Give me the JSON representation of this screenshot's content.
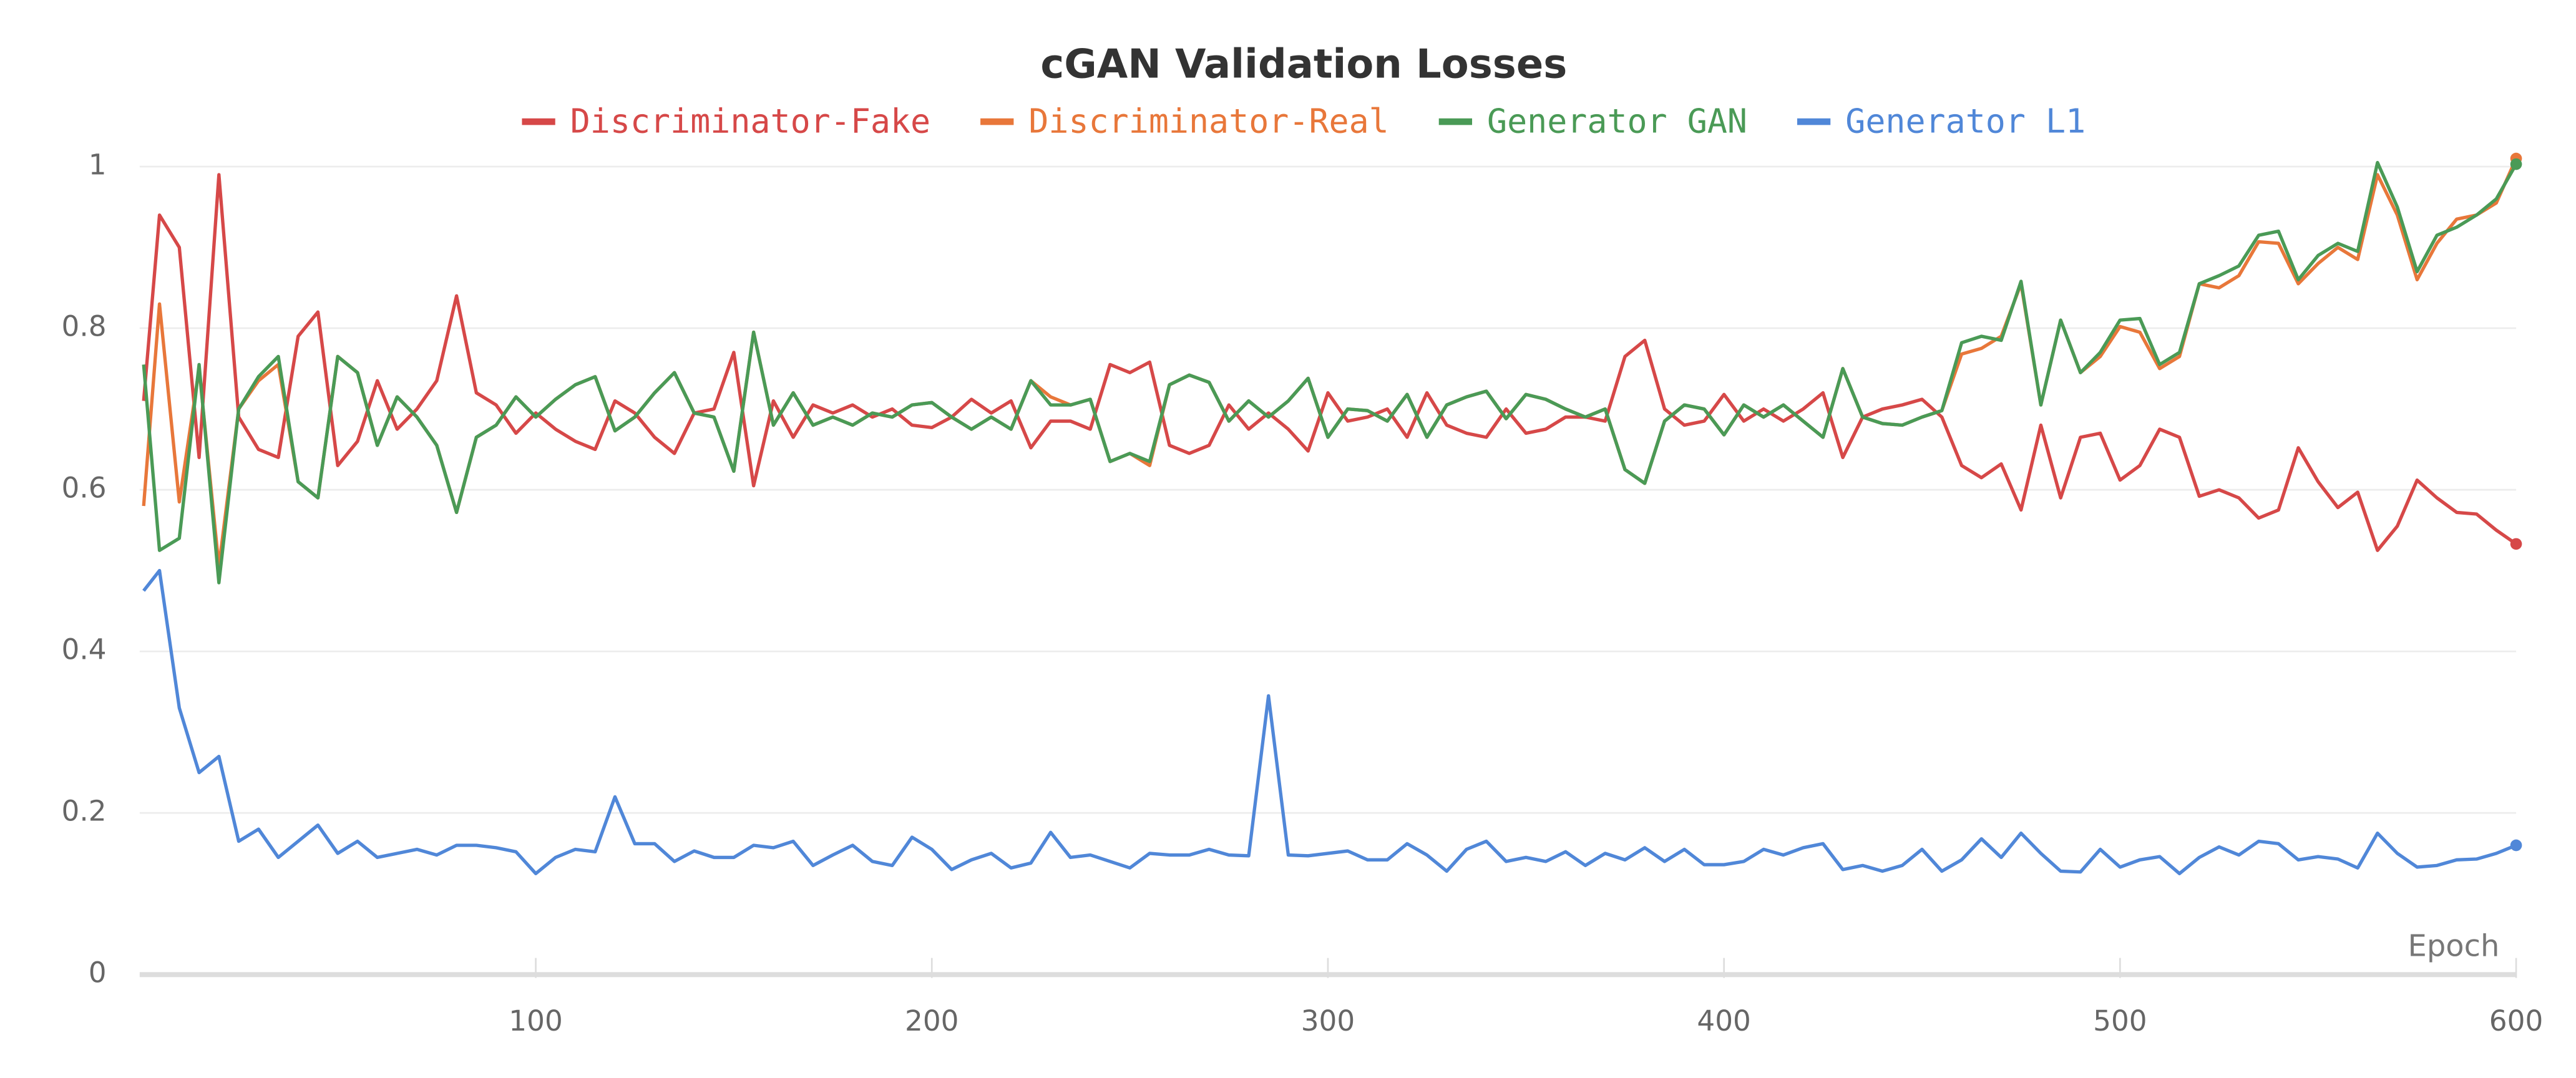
{
  "chart_data": {
    "type": "line",
    "title": "cGAN Validation Losses",
    "xlabel": "Epoch",
    "x": [
      1,
      5,
      10,
      15,
      20,
      25,
      30,
      35,
      40,
      45,
      50,
      55,
      60,
      65,
      70,
      75,
      80,
      85,
      90,
      95,
      100,
      105,
      110,
      115,
      120,
      125,
      130,
      135,
      140,
      145,
      150,
      155,
      160,
      165,
      170,
      175,
      180,
      185,
      190,
      195,
      200,
      205,
      210,
      215,
      220,
      225,
      230,
      235,
      240,
      245,
      250,
      255,
      260,
      265,
      270,
      275,
      280,
      285,
      290,
      295,
      300,
      305,
      310,
      315,
      320,
      325,
      330,
      335,
      340,
      345,
      350,
      355,
      360,
      365,
      370,
      375,
      380,
      385,
      390,
      395,
      400,
      405,
      410,
      415,
      420,
      425,
      430,
      435,
      440,
      445,
      450,
      455,
      460,
      465,
      470,
      475,
      480,
      485,
      490,
      495,
      500,
      505,
      510,
      515,
      520,
      525,
      530,
      535,
      540,
      545,
      550,
      555,
      560,
      565,
      570,
      575,
      580,
      585,
      590,
      595,
      600
    ],
    "series": [
      {
        "name": "Discriminator-Fake",
        "color": "#d64848",
        "values": [
          0.71,
          0.94,
          0.9,
          0.64,
          0.99,
          0.69,
          0.65,
          0.64,
          0.79,
          0.82,
          0.63,
          0.66,
          0.735,
          0.675,
          0.7,
          0.735,
          0.84,
          0.72,
          0.705,
          0.67,
          0.695,
          0.675,
          0.66,
          0.65,
          0.71,
          0.695,
          0.665,
          0.645,
          0.695,
          0.7,
          0.77,
          0.605,
          0.71,
          0.665,
          0.705,
          0.695,
          0.705,
          0.69,
          0.7,
          0.68,
          0.677,
          0.69,
          0.712,
          0.695,
          0.71,
          0.652,
          0.685,
          0.685,
          0.675,
          0.755,
          0.745,
          0.758,
          0.655,
          0.645,
          0.655,
          0.705,
          0.675,
          0.695,
          0.675,
          0.648,
          0.72,
          0.685,
          0.69,
          0.7,
          0.665,
          0.72,
          0.68,
          0.67,
          0.665,
          0.7,
          0.67,
          0.675,
          0.69,
          0.69,
          0.685,
          0.765,
          0.785,
          0.7,
          0.68,
          0.685,
          0.718,
          0.685,
          0.7,
          0.685,
          0.7,
          0.72,
          0.64,
          0.69,
          0.7,
          0.705,
          0.712,
          0.69,
          0.63,
          0.615,
          0.632,
          0.575,
          0.68,
          0.59,
          0.665,
          0.67,
          0.612,
          0.63,
          0.675,
          0.665,
          0.592,
          0.6,
          0.59,
          0.565,
          0.575,
          0.652,
          0.61,
          0.578,
          0.597,
          0.525,
          0.555,
          0.612,
          0.59,
          0.572,
          0.57,
          0.55,
          0.533
        ]
      },
      {
        "name": "Discriminator-Real",
        "color": "#e8773a",
        "values": [
          0.58,
          0.83,
          0.585,
          0.75,
          0.505,
          0.7,
          0.735,
          0.755,
          0.61,
          0.59,
          0.765,
          0.745,
          0.655,
          0.715,
          0.69,
          0.655,
          0.572,
          0.665,
          0.68,
          0.715,
          0.69,
          0.712,
          0.73,
          0.74,
          0.673,
          0.69,
          0.72,
          0.745,
          0.695,
          0.69,
          0.623,
          0.795,
          0.68,
          0.72,
          0.68,
          0.69,
          0.68,
          0.695,
          0.69,
          0.705,
          0.708,
          0.69,
          0.675,
          0.69,
          0.675,
          0.735,
          0.715,
          0.705,
          0.712,
          0.635,
          0.645,
          0.63,
          0.73,
          0.742,
          0.733,
          0.685,
          0.71,
          0.69,
          0.71,
          0.738,
          0.665,
          0.7,
          0.698,
          0.685,
          0.718,
          0.665,
          0.705,
          0.715,
          0.722,
          0.688,
          0.718,
          0.712,
          0.7,
          0.69,
          0.7,
          0.625,
          0.608,
          0.685,
          0.705,
          0.7,
          0.668,
          0.705,
          0.69,
          0.705,
          0.685,
          0.665,
          0.75,
          0.69,
          0.682,
          0.68,
          0.69,
          0.698,
          0.768,
          0.775,
          0.79,
          0.855,
          0.705,
          0.81,
          0.745,
          0.765,
          0.802,
          0.795,
          0.75,
          0.765,
          0.855,
          0.85,
          0.865,
          0.907,
          0.905,
          0.855,
          0.88,
          0.9,
          0.885,
          0.99,
          0.94,
          0.86,
          0.905,
          0.935,
          0.94,
          0.955,
          1.01
        ]
      },
      {
        "name": "Generator GAN",
        "color": "#4a9a56",
        "values": [
          0.755,
          0.525,
          0.54,
          0.755,
          0.485,
          0.7,
          0.74,
          0.765,
          0.61,
          0.59,
          0.765,
          0.745,
          0.655,
          0.715,
          0.69,
          0.655,
          0.572,
          0.665,
          0.68,
          0.715,
          0.69,
          0.712,
          0.73,
          0.74,
          0.673,
          0.69,
          0.72,
          0.745,
          0.695,
          0.69,
          0.623,
          0.795,
          0.68,
          0.72,
          0.68,
          0.69,
          0.68,
          0.695,
          0.69,
          0.705,
          0.708,
          0.69,
          0.675,
          0.69,
          0.675,
          0.735,
          0.705,
          0.705,
          0.712,
          0.635,
          0.645,
          0.635,
          0.73,
          0.742,
          0.733,
          0.685,
          0.71,
          0.69,
          0.71,
          0.738,
          0.665,
          0.7,
          0.698,
          0.685,
          0.718,
          0.665,
          0.705,
          0.715,
          0.722,
          0.688,
          0.718,
          0.712,
          0.7,
          0.69,
          0.7,
          0.625,
          0.608,
          0.685,
          0.705,
          0.7,
          0.668,
          0.705,
          0.69,
          0.705,
          0.685,
          0.665,
          0.75,
          0.69,
          0.682,
          0.68,
          0.69,
          0.698,
          0.782,
          0.79,
          0.785,
          0.858,
          0.705,
          0.81,
          0.745,
          0.77,
          0.81,
          0.812,
          0.755,
          0.77,
          0.855,
          0.865,
          0.877,
          0.915,
          0.92,
          0.86,
          0.89,
          0.905,
          0.895,
          1.005,
          0.95,
          0.87,
          0.915,
          0.925,
          0.94,
          0.96,
          1.003
        ]
      },
      {
        "name": "Generator L1",
        "color": "#5087d8",
        "values": [
          0.475,
          0.5,
          0.33,
          0.25,
          0.27,
          0.165,
          0.18,
          0.145,
          0.165,
          0.185,
          0.15,
          0.165,
          0.145,
          0.15,
          0.155,
          0.148,
          0.16,
          0.16,
          0.157,
          0.152,
          0.125,
          0.145,
          0.155,
          0.152,
          0.22,
          0.162,
          0.162,
          0.14,
          0.153,
          0.145,
          0.145,
          0.16,
          0.157,
          0.165,
          0.135,
          0.148,
          0.16,
          0.14,
          0.135,
          0.17,
          0.155,
          0.13,
          0.142,
          0.15,
          0.132,
          0.138,
          0.176,
          0.145,
          0.148,
          0.14,
          0.132,
          0.15,
          0.148,
          0.148,
          0.155,
          0.148,
          0.147,
          0.345,
          0.148,
          0.147,
          0.15,
          0.153,
          0.142,
          0.142,
          0.162,
          0.148,
          0.128,
          0.155,
          0.165,
          0.14,
          0.145,
          0.14,
          0.152,
          0.135,
          0.15,
          0.142,
          0.157,
          0.14,
          0.155,
          0.136,
          0.136,
          0.14,
          0.155,
          0.148,
          0.157,
          0.162,
          0.13,
          0.135,
          0.128,
          0.135,
          0.155,
          0.128,
          0.142,
          0.168,
          0.145,
          0.175,
          0.15,
          0.128,
          0.127,
          0.155,
          0.133,
          0.142,
          0.146,
          0.125,
          0.145,
          0.158,
          0.148,
          0.165,
          0.162,
          0.142,
          0.146,
          0.143,
          0.132,
          0.175,
          0.15,
          0.133,
          0.135,
          0.142,
          0.143,
          0.15,
          0.16
        ]
      }
    ],
    "xlim": [
      0,
      600
    ],
    "ylim": [
      0,
      1
    ],
    "xticks": [
      100,
      200,
      300,
      400,
      500,
      600
    ],
    "yticks": [
      0,
      0.2,
      0.4,
      0.6,
      0.8,
      1
    ],
    "grid": true,
    "legend": "top"
  }
}
